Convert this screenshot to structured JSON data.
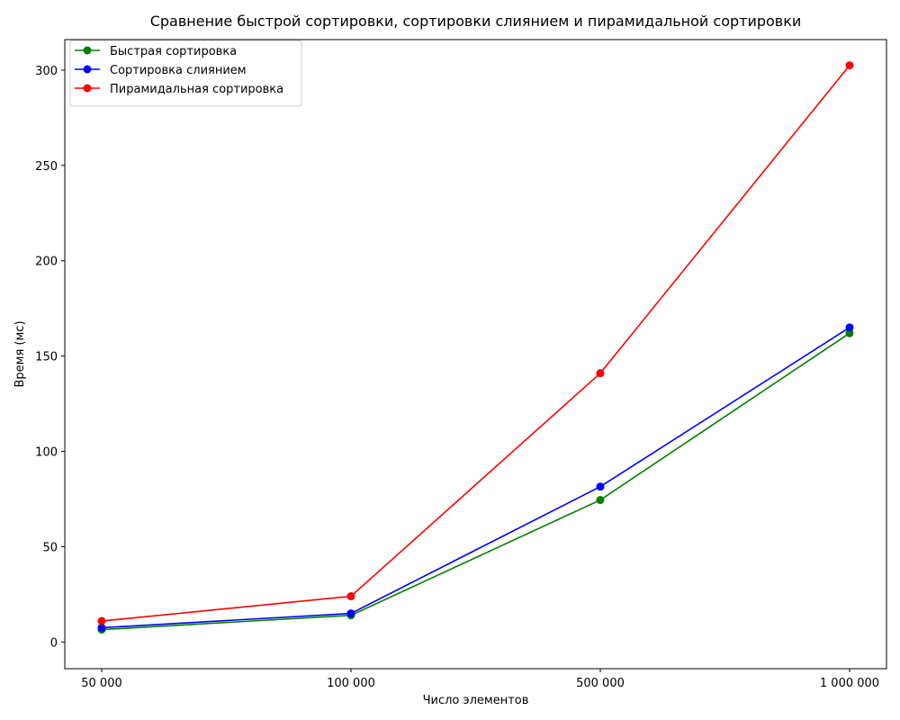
{
  "chart_data": {
    "type": "line",
    "title": "Сравнение быстрой сортировки, сортировки слиянием и пирамидальной сортировки",
    "xlabel": "Число элементов",
    "ylabel": "Время (мс)",
    "categories": [
      "50 000",
      "100 000",
      "500 000",
      "1 000 000"
    ],
    "ylim": [
      -14,
      316
    ],
    "yticks": [
      0,
      50,
      100,
      150,
      200,
      250,
      300
    ],
    "grid": false,
    "legend_position": "top-left",
    "series": [
      {
        "name": "Быстрая сортировка",
        "color": "#008000",
        "values": [
          6.5,
          14,
          74.5,
          162
        ]
      },
      {
        "name": "Сортировка слиянием",
        "color": "#0000ff",
        "values": [
          7.5,
          15,
          81.5,
          165
        ]
      },
      {
        "name": "Пирамидальная сортировка",
        "color": "#ff0000",
        "values": [
          11,
          24,
          141,
          302.5
        ]
      }
    ]
  }
}
